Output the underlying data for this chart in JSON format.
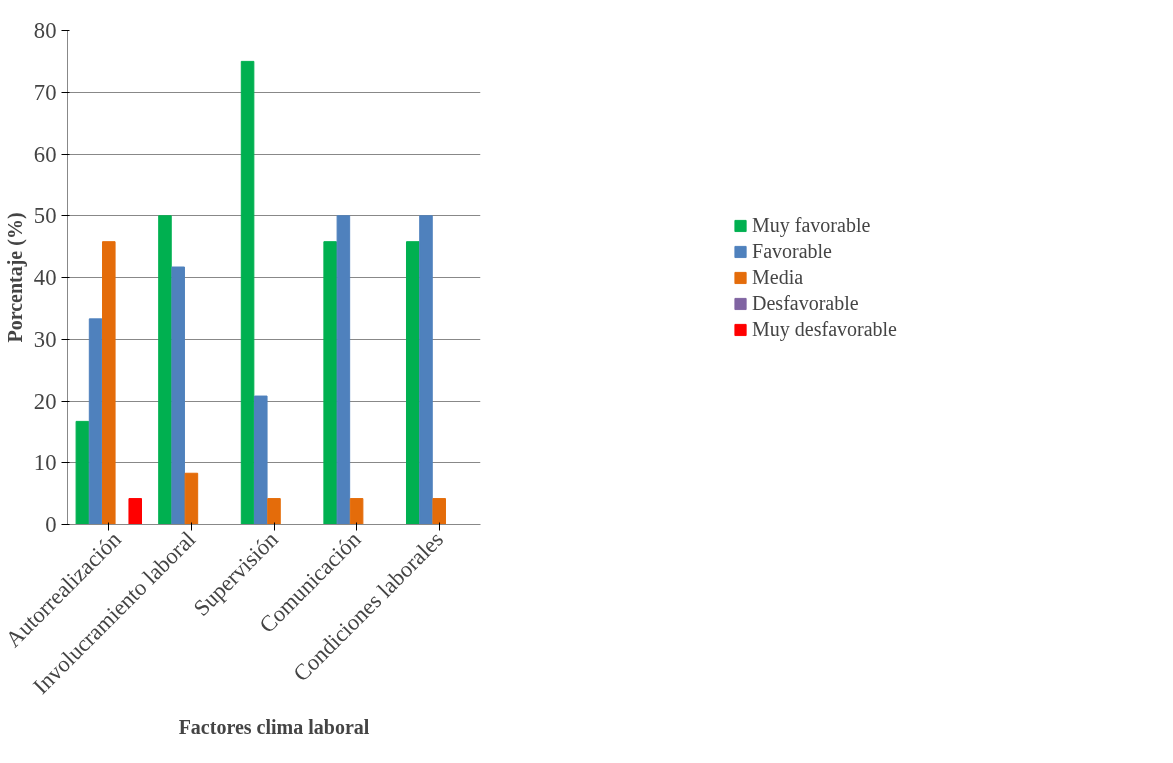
{
  "chart_data": {
    "type": "bar",
    "xlabel": "Factores clima laboral",
    "ylabel": "Porcentaje (%)",
    "categories": [
      "Autorrealización",
      "Involucramiento laboral",
      "Supervisión",
      "Comunicación",
      "Condiciones laborales"
    ],
    "series": [
      {
        "name": "Muy favorable",
        "color": "#00b050",
        "values": [
          16.7,
          50,
          75,
          45.8,
          45.8
        ]
      },
      {
        "name": "Favorable",
        "color": "#4f81bd",
        "values": [
          33.3,
          41.7,
          20.8,
          50,
          50
        ]
      },
      {
        "name": "Media",
        "color": "#e46c0a",
        "values": [
          45.8,
          8.3,
          4.2,
          4.2,
          4.2
        ]
      },
      {
        "name": "Desfavorable",
        "color": "#8064a2",
        "values": [
          0,
          0,
          0,
          0,
          0
        ]
      },
      {
        "name": "Muy desfavorable",
        "color": "#ff0000",
        "values": [
          4.2,
          0,
          0,
          0,
          0
        ]
      }
    ],
    "ylim": [
      0,
      80
    ],
    "yticks": [
      0,
      10,
      20,
      30,
      40,
      50,
      60,
      70,
      80
    ],
    "grid": "y",
    "legend": "right"
  }
}
